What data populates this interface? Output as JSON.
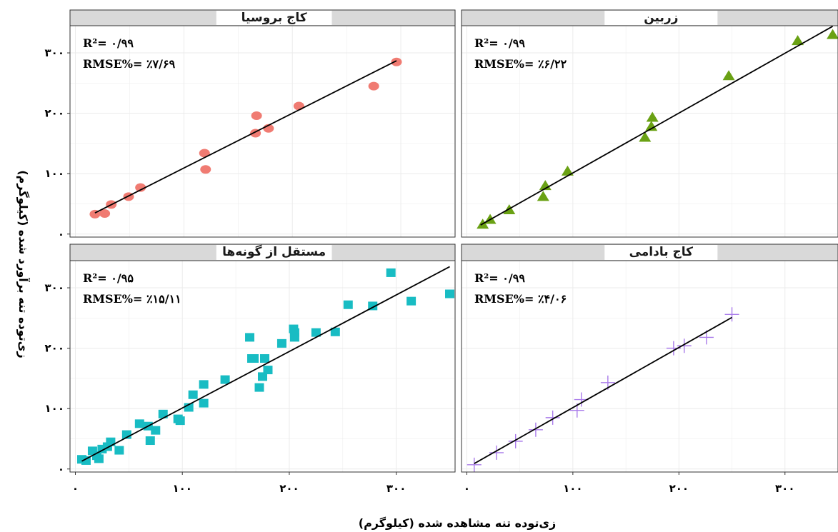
{
  "x_axis_title": "زی‌توده تنه مشاهده شده (کیلوگرم)",
  "y_axis_title": "زی‌توده تنه برآورد شده (کیلوگرم)",
  "colors": {
    "panel_border": "#333333",
    "strip_fill": "#d9d9d9",
    "grid": "#ebebeb",
    "fit_line": "#000000"
  },
  "chart_data": [
    {
      "type": "scatter",
      "title": "کاج بروسیا",
      "marker": "circle",
      "color": "#f07b72",
      "r2_label": "R²= ۰/۹۹",
      "rmse_label": "RMSE%= ٪۷/۶۹",
      "x_ticks": [
        "۰",
        "۱۰۰",
        "۲۰۰",
        "۳۰۰"
      ],
      "y_ticks": [
        "۰",
        "۱۰۰",
        "۲۰۰",
        "۳۰۰"
      ],
      "xlim": [
        -5,
        350
      ],
      "ylim": [
        -5,
        345
      ],
      "x": [
        18,
        27,
        33,
        49,
        60,
        119,
        120,
        166,
        167,
        178,
        206,
        275,
        296
      ],
      "y": [
        33,
        34,
        49,
        62,
        77,
        134,
        107,
        167,
        196,
        175,
        212,
        245,
        285
      ],
      "fit_line": {
        "x": [
          18,
          296
        ],
        "y": [
          35,
          287
        ]
      }
    },
    {
      "type": "scatter",
      "title": "زربین",
      "marker": "triangle",
      "color": "#6aa114",
      "r2_label": "R²= ۰/۹۹",
      "rmse_label": "RMSE%= ٪۶/۲۲",
      "x_ticks": [
        "۰",
        "۱۰۰",
        "۲۰۰",
        "۳۰۰"
      ],
      "y_ticks": [
        "۰",
        "۱۰۰",
        "۲۰۰",
        "۳۰۰"
      ],
      "xlim": [
        -5,
        350
      ],
      "ylim": [
        -5,
        345
      ],
      "x": [
        15,
        22,
        40,
        72,
        74,
        95,
        168,
        174,
        175,
        247,
        312,
        345
      ],
      "y": [
        16,
        24,
        40,
        62,
        80,
        104,
        160,
        178,
        193,
        262,
        320,
        330
      ],
      "fit_line": {
        "x": [
          13,
          345
        ],
        "y": [
          15,
          344
        ]
      }
    },
    {
      "type": "scatter",
      "title": "مستقل از گونه‌ها",
      "marker": "square",
      "color": "#18bcc3",
      "r2_label": "R²= ۰/۹۵",
      "rmse_label": "RMSE%= ٪۱۵/۱۱",
      "x_ticks": [
        "۰",
        "۱۰۰",
        "۲۰۰",
        "۳۰۰"
      ],
      "y_ticks": [
        "۰",
        "۱۰۰",
        "۲۰۰",
        "۳۰۰"
      ],
      "xlim": [
        -5,
        355
      ],
      "ylim": [
        -5,
        345
      ],
      "x": [
        6,
        10,
        16,
        20,
        22,
        25,
        30,
        33,
        41,
        48,
        60,
        68,
        70,
        75,
        82,
        96,
        98,
        106,
        110,
        120,
        120,
        140,
        163,
        167,
        172,
        165,
        175,
        180,
        177,
        193,
        204,
        205,
        205,
        225,
        243,
        255,
        278,
        295,
        314,
        350
      ],
      "y": [
        16,
        14,
        30,
        22,
        17,
        33,
        37,
        45,
        31,
        57,
        75,
        71,
        47,
        64,
        91,
        83,
        80,
        102,
        123,
        140,
        109,
        148,
        218,
        183,
        135,
        183,
        153,
        164,
        183,
        208,
        232,
        226,
        218,
        226,
        227,
        272,
        270,
        325,
        278,
        290
      ],
      "fit_line": {
        "x": [
          6,
          350
        ],
        "y": [
          13,
          335
        ]
      }
    },
    {
      "type": "scatter",
      "title": "کاج بادامی",
      "marker": "cross",
      "color": "#a97bea",
      "r2_label": "R²= ۰/۹۹",
      "rmse_label": "RMSE%= ٪۴/۰۶",
      "x_ticks": [
        "۰",
        "۱۰۰",
        "۲۰۰",
        "۳۰۰"
      ],
      "y_ticks": [
        "۰",
        "۱۰۰",
        "۲۰۰",
        "۳۰۰"
      ],
      "xlim": [
        -5,
        350
      ],
      "ylim": [
        -5,
        345
      ],
      "x": [
        7,
        28,
        46,
        65,
        81,
        104,
        108,
        133,
        195,
        205,
        226,
        250
      ],
      "y": [
        7,
        27,
        46,
        65,
        85,
        97,
        115,
        143,
        200,
        204,
        218,
        256
      ],
      "fit_line": {
        "x": [
          7,
          250
        ],
        "y": [
          9,
          251
        ]
      }
    }
  ]
}
